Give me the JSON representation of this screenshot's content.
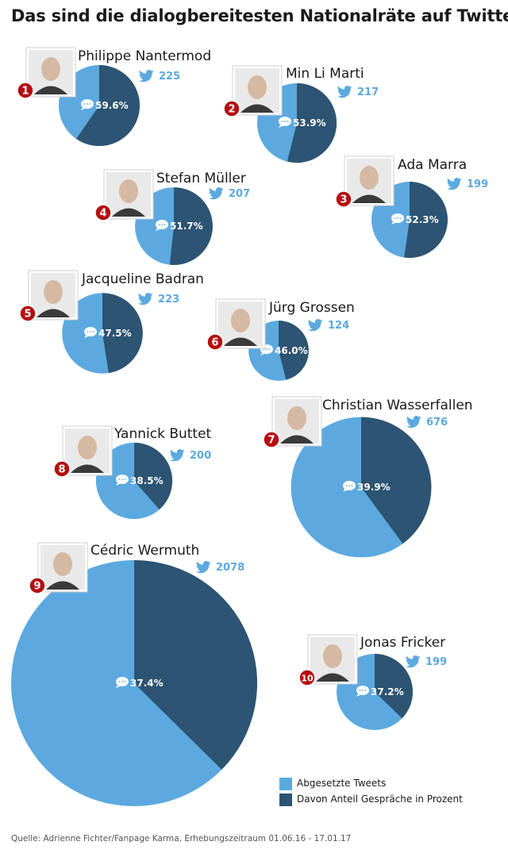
{
  "title": "Das sind die dialogbereitesten Nationalräte auf Twitter",
  "source": "Quelle: Adrienne Fichter/Fanpage Karma, Erhebungszeitraum 01.06.16 - 17.01.17",
  "colors": {
    "tweets": "#5ca9e0",
    "conversations": "#2d5472",
    "rank_badge": "#b50d10",
    "twitter_bird": "#5ca9e0"
  },
  "icons": {
    "bird": "twitter-bird-icon",
    "bubble": "speech-bubble-icon"
  },
  "chart_data": {
    "type": "pie",
    "series_names": [
      "Abgesetzte Tweets",
      "Davon Anteil Gespräche in Prozent"
    ],
    "legend_position": "bottom-right",
    "politicians": [
      {
        "rank": "1",
        "name": "Philippe Nantermod",
        "tweets": 225,
        "tweets_label": "225",
        "conversation_pct": 59.6,
        "pct_label": "59.6%"
      },
      {
        "rank": "2",
        "name": "Min Li Marti",
        "tweets": 217,
        "tweets_label": "217",
        "conversation_pct": 53.9,
        "pct_label": "53.9%"
      },
      {
        "rank": "3",
        "name": "Ada Marra",
        "tweets": 199,
        "tweets_label": "199",
        "conversation_pct": 52.3,
        "pct_label": "52.3%"
      },
      {
        "rank": "4",
        "name": "Stefan Müller",
        "tweets": 207,
        "tweets_label": "207",
        "conversation_pct": 51.7,
        "pct_label": "51.7%"
      },
      {
        "rank": "5",
        "name": "Jacqueline Badran",
        "tweets": 223,
        "tweets_label": "223",
        "conversation_pct": 47.5,
        "pct_label": "47.5%"
      },
      {
        "rank": "6",
        "name": "Jürg Grossen",
        "tweets": 124,
        "tweets_label": "124",
        "conversation_pct": 46.0,
        "pct_label": "46.0%"
      },
      {
        "rank": "7",
        "name": "Christian Wasserfallen",
        "tweets": 676,
        "tweets_label": "676",
        "conversation_pct": 39.9,
        "pct_label": "39.9%"
      },
      {
        "rank": "8",
        "name": "Yannick Buttet",
        "tweets": 200,
        "tweets_label": "200",
        "conversation_pct": 38.5,
        "pct_label": "38.5%"
      },
      {
        "rank": "9",
        "name": "Cédric Wermuth",
        "tweets": 2078,
        "tweets_label": "2078",
        "conversation_pct": 37.4,
        "pct_label": "37.4%"
      },
      {
        "rank": "10",
        "name": "Jonas Fricker",
        "tweets": 199,
        "tweets_label": "199",
        "conversation_pct": 37.2,
        "pct_label": "37.2%"
      }
    ]
  }
}
